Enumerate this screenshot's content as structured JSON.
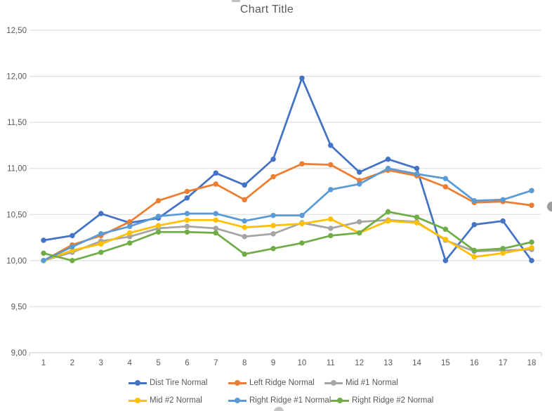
{
  "chart": {
    "title": "Chart Title"
  },
  "chart_data": {
    "type": "line",
    "title": "Chart Title",
    "x": [
      1,
      2,
      3,
      4,
      5,
      6,
      7,
      8,
      9,
      10,
      11,
      12,
      13,
      14,
      15,
      16,
      17,
      18
    ],
    "series": [
      {
        "name": "Dist Tire Normal",
        "color": "#4472C4",
        "values": [
          10.22,
          10.27,
          10.51,
          10.41,
          10.46,
          10.68,
          10.95,
          10.82,
          11.1,
          11.98,
          11.25,
          10.96,
          11.1,
          11.0,
          10.0,
          10.39,
          10.43,
          10.0
        ]
      },
      {
        "name": "Left Ridge Normal",
        "color": "#ED7D31",
        "values": [
          10.0,
          10.17,
          10.27,
          10.42,
          10.65,
          10.75,
          10.83,
          10.66,
          10.91,
          11.05,
          11.04,
          10.87,
          10.98,
          10.92,
          10.8,
          10.63,
          10.64,
          10.6
        ]
      },
      {
        "name": "Mid #1 Normal",
        "color": "#A5A5A5",
        "values": [
          10.0,
          10.09,
          10.21,
          10.26,
          10.35,
          10.37,
          10.35,
          10.26,
          10.29,
          10.41,
          10.35,
          10.42,
          10.44,
          10.42,
          10.22,
          10.1,
          10.11,
          10.12
        ]
      },
      {
        "name": "Mid #2 Normal",
        "color": "#FFC000",
        "values": [
          10.0,
          10.11,
          10.18,
          10.3,
          10.38,
          10.44,
          10.44,
          10.36,
          10.38,
          10.4,
          10.45,
          10.3,
          10.43,
          10.41,
          10.23,
          10.04,
          10.08,
          10.14
        ]
      },
      {
        "name": "Right Ridge #1 Normal",
        "color": "#5B9BD5",
        "values": [
          10.0,
          10.15,
          10.29,
          10.37,
          10.48,
          10.51,
          10.51,
          10.43,
          10.49,
          10.49,
          10.77,
          10.83,
          11.0,
          10.94,
          10.89,
          10.65,
          10.66,
          10.76
        ]
      },
      {
        "name": "Right Ridge #2 Normal",
        "color": "#70AD47",
        "values": [
          10.08,
          10.0,
          10.09,
          10.19,
          10.31,
          10.31,
          10.3,
          10.07,
          10.13,
          10.19,
          10.27,
          10.3,
          10.53,
          10.47,
          10.34,
          10.11,
          10.13,
          10.2
        ]
      }
    ],
    "ylim": [
      9.0,
      12.5
    ],
    "ytick_step": 0.5,
    "ytick_labels": [
      "9,00",
      "9,50",
      "10,00",
      "10,50",
      "11,00",
      "11,50",
      "12,00",
      "12,50"
    ],
    "decimal_separator": ",",
    "grid": true,
    "legend_position": "bottom",
    "colors": {
      "gridline": "#D9D9D9",
      "axis_line": "#C9C9C9",
      "axis_text": "#595959",
      "title_text": "#595959"
    }
  },
  "artifacts": {
    "left_edge_partial_text": "0"
  }
}
